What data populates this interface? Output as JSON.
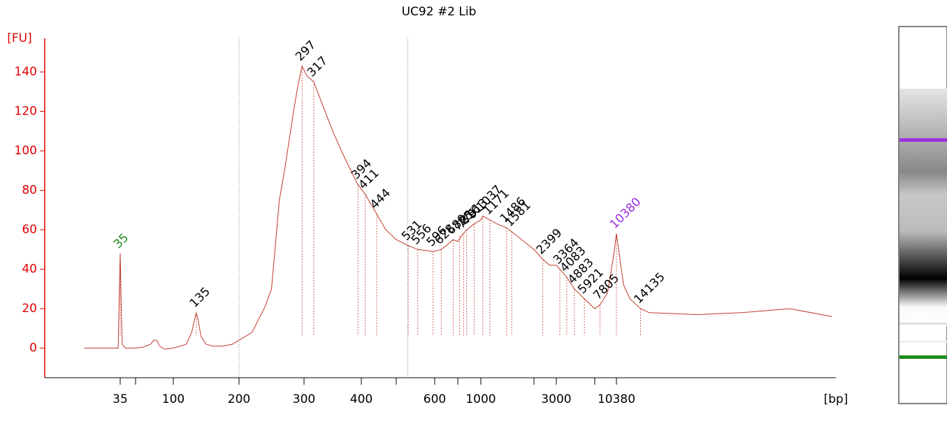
{
  "chart_data": {
    "type": "line",
    "title": "UC92 #2 Lib",
    "y_label": "[FU]",
    "x_label": "[bp]",
    "ylim": [
      -15,
      157
    ],
    "yticks": [
      0,
      20,
      40,
      60,
      80,
      100,
      120,
      140
    ],
    "xticks": [
      35,
      {
        "value": 50,
        "label": null
      },
      100,
      200,
      300,
      400,
      {
        "value": 500,
        "label": null
      },
      600,
      {
        "value": 700,
        "label": null
      },
      1000,
      {
        "value": 2000,
        "label": null
      },
      3000,
      {
        "value": 7000,
        "label": null
      },
      10380
    ],
    "regions": [
      200,
      530
    ],
    "series": [
      {
        "name": "UC92 #2 Lib",
        "color": "#c0392b",
        "x": [
          0,
          30,
          33,
          34,
          35,
          36,
          37,
          40,
          50,
          60,
          70,
          74,
          78,
          82,
          88,
          100,
          120,
          128,
          132,
          135,
          138,
          142,
          150,
          160,
          175,
          190,
          200,
          220,
          240,
          250,
          262,
          270,
          284,
          290,
          297,
          305,
          317,
          330,
          350,
          370,
          390,
          394,
          411,
          444,
          470,
          500,
          531,
          556,
          596,
          628,
          650,
          680,
          700,
          750,
          816,
          913,
          1000,
          1037,
          1171,
          1300,
          1486,
          1581,
          2000,
          2399,
          2700,
          3000,
          3364,
          4083,
          4883,
          5921,
          7000,
          7805,
          9000,
          10000,
          10380,
          10800,
          11500,
          12500,
          14135,
          15500,
          23000,
          30000,
          37400,
          44000
        ],
        "values": [
          0,
          0,
          0,
          25,
          48,
          20,
          2,
          0,
          0,
          0.5,
          2,
          4,
          4,
          1,
          -0.5,
          0,
          2,
          8,
          14,
          18,
          14,
          6,
          2,
          1,
          1,
          2,
          4,
          8,
          21,
          30,
          75,
          90,
          120,
          132,
          143,
          138,
          135,
          125,
          110,
          97,
          85,
          83,
          78,
          68,
          60,
          55,
          52,
          50,
          49,
          50,
          52,
          55,
          54,
          57,
          60,
          63,
          65,
          67,
          65,
          63,
          61,
          59,
          50,
          45,
          42,
          42,
          40,
          36,
          30,
          25,
          20,
          22,
          28,
          48,
          58,
          48,
          32,
          25,
          20,
          18,
          17,
          18,
          20,
          16
        ]
      }
    ],
    "peaks": {
      "x": [
        35,
        135,
        297,
        317,
        394,
        411,
        444,
        531,
        556,
        596,
        628,
        680,
        725,
        775,
        816,
        913,
        1037,
        1171,
        1486,
        1581,
        2399,
        3364,
        4083,
        4883,
        5921,
        7805,
        10380,
        14135
      ],
      "values": [
        48,
        18,
        143,
        135,
        83,
        78,
        68,
        52,
        50,
        49,
        50,
        55,
        57,
        58,
        60,
        63,
        67,
        65,
        61,
        59,
        45,
        40,
        36,
        30,
        25,
        22,
        58,
        20
      ],
      "colors": [
        "#1e8c1e",
        "#000000",
        "#000000",
        "#000000",
        "#000000",
        "#000000",
        "#000000",
        "#000000",
        "#000000",
        "#000000",
        "#000000",
        "#000000",
        "#000000",
        "#000000",
        "#000000",
        "#000000",
        "#000000",
        "#000000",
        "#000000",
        "#000000",
        "#000000",
        "#000000",
        "#000000",
        "#000000",
        "#000000",
        "#000000",
        "#9b30e0",
        "#000000"
      ]
    }
  }
}
